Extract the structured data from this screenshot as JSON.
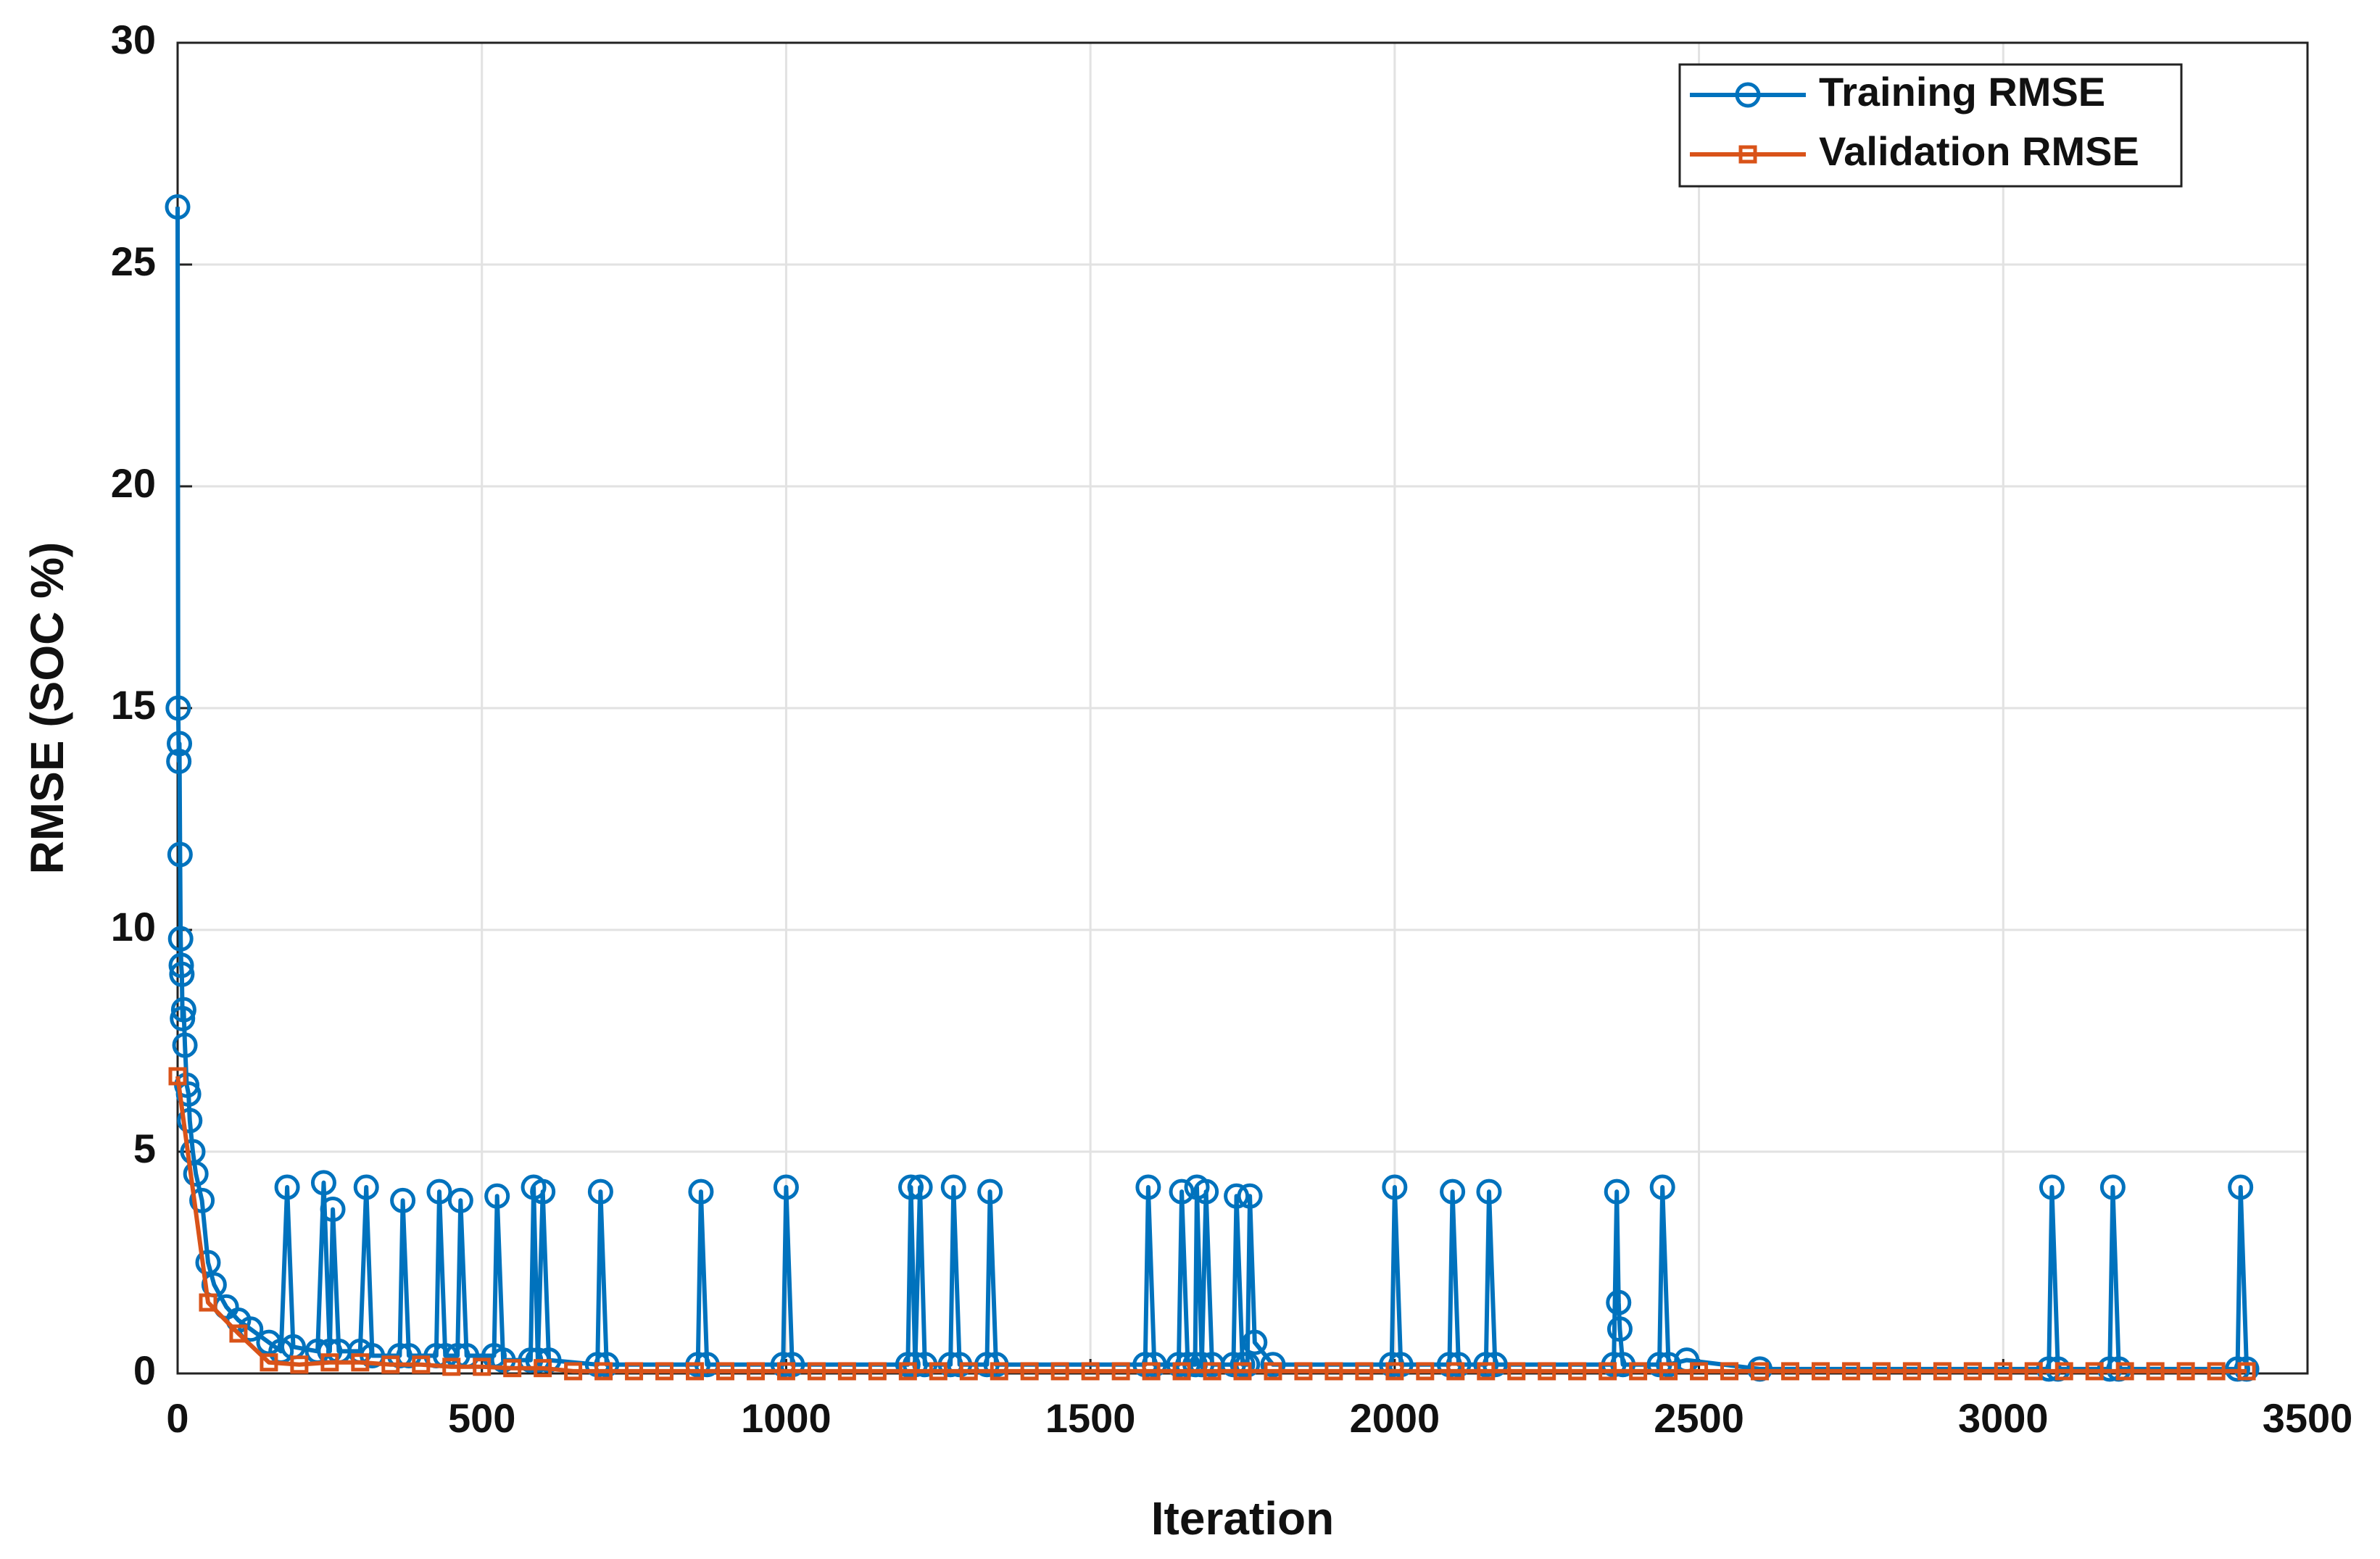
{
  "chart_data": {
    "type": "line",
    "xlabel": "Iteration",
    "ylabel": "RMSE (SOC %)",
    "xlim": [
      0,
      3500
    ],
    "ylim": [
      0,
      30
    ],
    "xticks": [
      0,
      500,
      1000,
      1500,
      2000,
      2500,
      3000,
      3500
    ],
    "yticks": [
      0,
      5,
      10,
      15,
      20,
      25,
      30
    ],
    "grid": true,
    "legend": "upper right",
    "series": [
      {
        "name": "Training RMSE",
        "color": "#0072BD",
        "marker": "circle",
        "x": [
          0,
          1,
          2,
          3,
          4,
          5,
          6,
          7,
          8,
          10,
          12,
          15,
          18,
          20,
          25,
          30,
          40,
          50,
          60,
          80,
          100,
          120,
          150,
          170,
          180,
          190,
          230,
          240,
          250,
          255,
          265,
          300,
          310,
          320,
          365,
          370,
          380,
          425,
          430,
          440,
          460,
          465,
          475,
          520,
          525,
          535,
          580,
          585,
          592,
          600,
          610,
          690,
          695,
          705,
          855,
          860,
          870,
          995,
          1000,
          1010,
          1200,
          1205,
          1212,
          1220,
          1228,
          1270,
          1275,
          1285,
          1330,
          1335,
          1345,
          1590,
          1595,
          1605,
          1645,
          1650,
          1660,
          1672,
          1675,
          1683,
          1690,
          1700,
          1735,
          1740,
          1750,
          1758,
          1762,
          1770,
          1800,
          1995,
          2000,
          2010,
          2090,
          2095,
          2105,
          2150,
          2155,
          2165,
          2360,
          2365,
          2368,
          2370,
          2375,
          2435,
          2440,
          2450,
          2480,
          2600,
          3075,
          3080,
          3090,
          3175,
          3180,
          3190,
          3385,
          3390,
          3400
        ],
        "values": [
          26.3,
          15,
          13.8,
          14.2,
          11.7,
          9.8,
          9.2,
          9.0,
          8.0,
          8.2,
          7.4,
          6.5,
          6.3,
          5.7,
          5.0,
          4.5,
          3.9,
          2.5,
          2.0,
          1.5,
          1.2,
          1.0,
          0.7,
          0.5,
          4.2,
          0.6,
          0.5,
          4.3,
          0.5,
          3.7,
          0.5,
          0.5,
          4.2,
          0.4,
          0.4,
          3.9,
          0.4,
          0.4,
          4.1,
          0.4,
          0.4,
          3.9,
          0.4,
          0.4,
          4.0,
          0.3,
          0.3,
          4.2,
          0.3,
          4.1,
          0.3,
          0.2,
          4.1,
          0.2,
          0.2,
          4.1,
          0.2,
          0.2,
          4.2,
          0.2,
          0.2,
          4.2,
          0.2,
          4.2,
          0.2,
          0.2,
          4.2,
          0.2,
          0.2,
          4.1,
          0.2,
          0.2,
          4.2,
          0.2,
          0.2,
          4.1,
          0.2,
          0.2,
          4.2,
          0.2,
          4.1,
          0.2,
          0.2,
          4.0,
          0.2,
          0.2,
          4.0,
          0.7,
          0.2,
          0.2,
          4.2,
          0.2,
          0.2,
          4.1,
          0.2,
          0.2,
          4.1,
          0.2,
          0.2,
          4.1,
          1.6,
          1.0,
          0.2,
          0.2,
          4.2,
          0.2,
          0.3,
          0.1,
          0.1,
          4.2,
          0.1,
          0.1,
          4.2,
          0.1,
          0.1,
          4.2,
          0.1
        ]
      },
      {
        "name": "Validation RMSE",
        "color": "#D95319",
        "marker": "square",
        "x": [
          0,
          50,
          100,
          150,
          200,
          250,
          300,
          350,
          400,
          450,
          500,
          550,
          600,
          650,
          700,
          750,
          800,
          850,
          900,
          950,
          1000,
          1050,
          1100,
          1150,
          1200,
          1250,
          1300,
          1350,
          1400,
          1450,
          1500,
          1550,
          1600,
          1650,
          1700,
          1750,
          1800,
          1850,
          1900,
          1950,
          2000,
          2050,
          2100,
          2150,
          2200,
          2250,
          2300,
          2350,
          2400,
          2450,
          2500,
          2550,
          2600,
          2650,
          2700,
          2750,
          2800,
          2850,
          2900,
          2950,
          3000,
          3050,
          3100,
          3150,
          3200,
          3250,
          3300,
          3350,
          3400
        ],
        "values": [
          6.7,
          1.6,
          0.9,
          0.25,
          0.2,
          0.25,
          0.25,
          0.2,
          0.2,
          0.15,
          0.15,
          0.12,
          0.12,
          0.05,
          0.05,
          0.05,
          0.05,
          0.05,
          0.05,
          0.05,
          0.05,
          0.05,
          0.05,
          0.05,
          0.05,
          0.05,
          0.05,
          0.05,
          0.05,
          0.05,
          0.05,
          0.05,
          0.05,
          0.05,
          0.05,
          0.05,
          0.05,
          0.05,
          0.05,
          0.05,
          0.05,
          0.05,
          0.05,
          0.05,
          0.05,
          0.05,
          0.05,
          0.05,
          0.05,
          0.05,
          0.05,
          0.05,
          0.05,
          0.05,
          0.05,
          0.05,
          0.05,
          0.05,
          0.05,
          0.05,
          0.05,
          0.05,
          0.05,
          0.05,
          0.05,
          0.05,
          0.05,
          0.05,
          0.05
        ]
      }
    ]
  }
}
